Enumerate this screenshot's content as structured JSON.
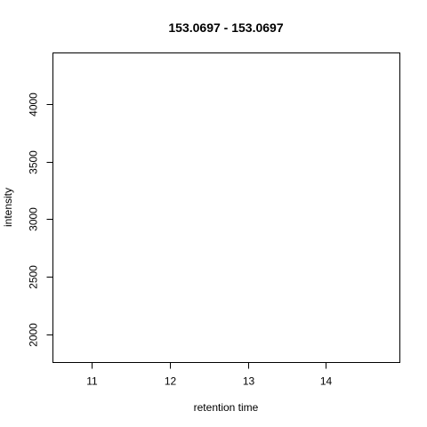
{
  "chart_data": {
    "type": "line",
    "title": "153.0697 - 153.0697",
    "xlabel": "retention time",
    "ylabel": "intensity",
    "xlim": [
      10.5,
      14.95
    ],
    "ylim": [
      1760,
      4440
    ],
    "x_ticks": [
      11,
      12,
      13,
      14
    ],
    "y_ticks": [
      2000,
      2500,
      3000,
      3500,
      4000
    ],
    "series": [],
    "grid": false
  }
}
